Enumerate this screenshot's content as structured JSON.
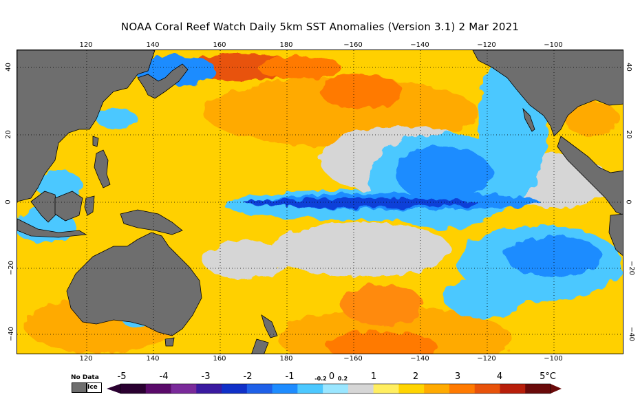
{
  "title": "NOAA Coral Reef Watch Daily 5km SST Anomalies (Version 3.1)  2 Mar 2021",
  "map": {
    "lon_ticks": [
      "120",
      "140",
      "160",
      "180",
      "−160",
      "−140",
      "−120",
      "−100"
    ],
    "lat_ticks_left": [
      "40",
      "20",
      "0",
      "−20",
      "−40"
    ],
    "lat_ticks_right": [
      "40",
      "20",
      "0",
      "−20",
      "−40"
    ],
    "colors": {
      "land": "#6e6e6e",
      "no_anomaly": "#d6d6d6",
      "warm_light": "#ffd400",
      "warm_mid": "#ffaa00",
      "warm_strong": "#e8520a",
      "cool_light": "#4cc8ff",
      "cool_mid": "#1e8cff",
      "cool_strong": "#1030c8"
    }
  },
  "legend": {
    "nodata_label": "No Data",
    "ice_label": "Ice",
    "scale_labels": [
      "-5",
      "-4",
      "-3",
      "-2",
      "-1",
      "-0.2",
      "0",
      "0.2",
      "1",
      "2",
      "3",
      "4",
      "5°C"
    ],
    "scale_colors": [
      "#2a0030",
      "#5a0a6a",
      "#7a2a9a",
      "#3a1aa0",
      "#1030c8",
      "#1e60e8",
      "#1e8cff",
      "#4cc8ff",
      "#9ae6ff",
      "#d6d6d6",
      "#ffee60",
      "#ffd400",
      "#ffaa00",
      "#ff7a00",
      "#e8520a",
      "#b81e0a",
      "#6a0a0a"
    ]
  }
}
